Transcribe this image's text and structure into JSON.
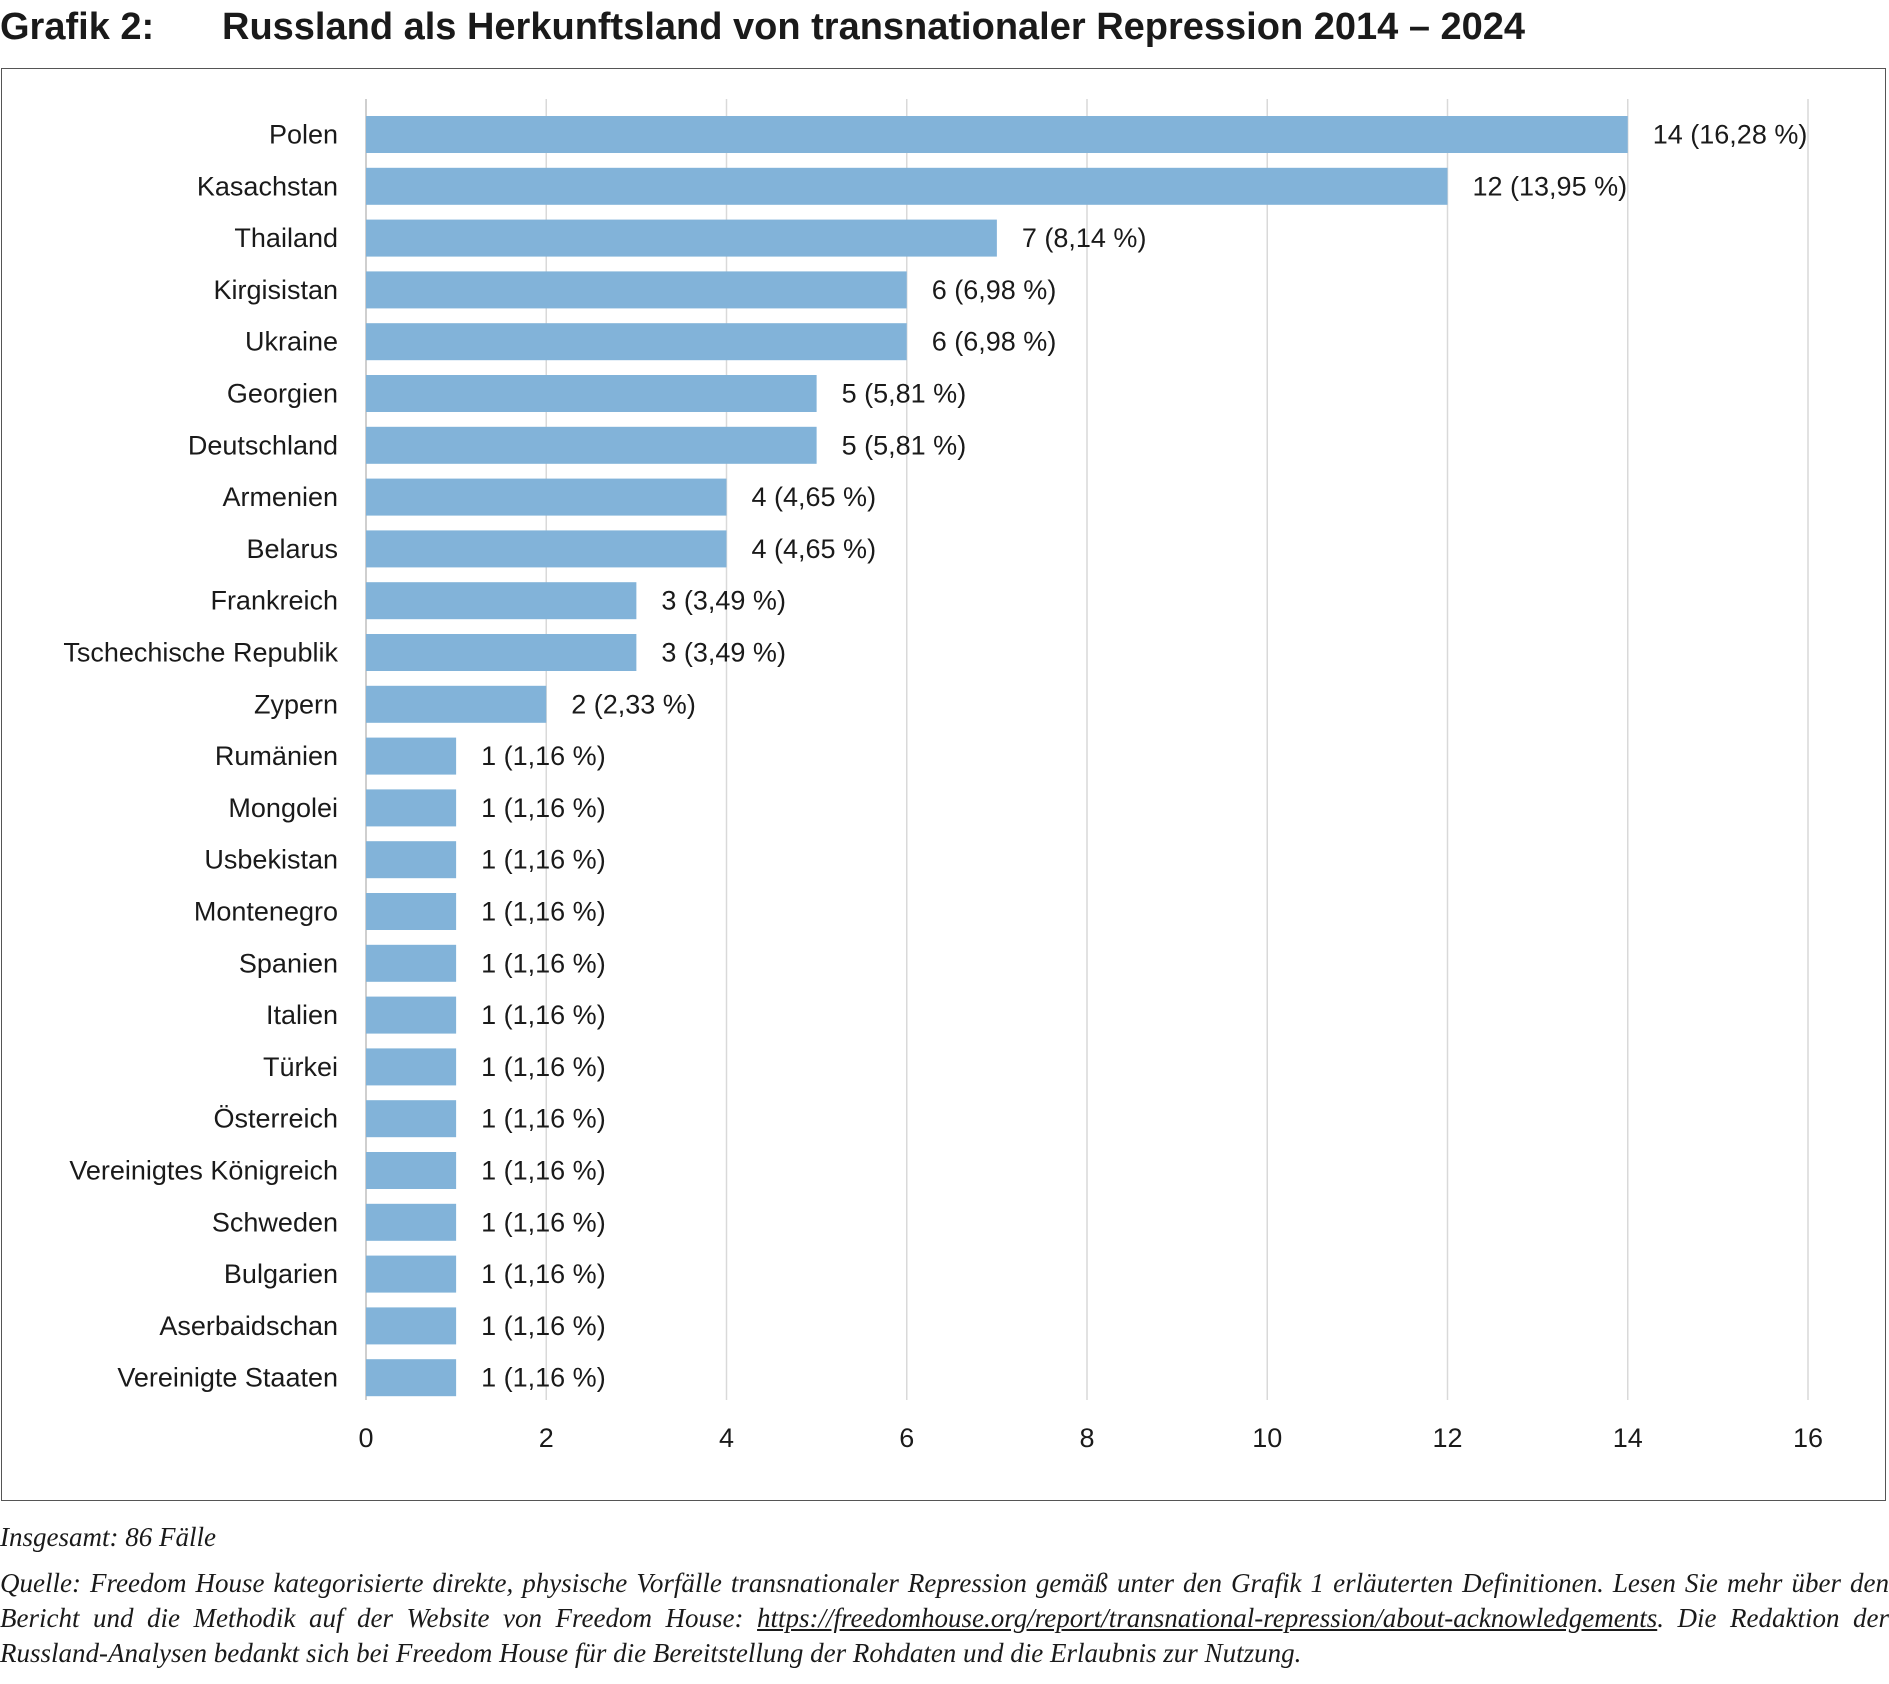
{
  "title": {
    "label": "Grafik 2:",
    "text": "Russland als Herkunftsland von transnationaler Repression 2014 – 2024"
  },
  "colors": {
    "bar": "#82B3D9",
    "grid": "#d9d9d9",
    "text": "#1a1a1a"
  },
  "chart_data": {
    "type": "bar",
    "orientation": "horizontal",
    "title": "Russland als Herkunftsland von transnationaler Repression 2014 – 2024",
    "xlabel": "",
    "ylabel": "",
    "xlim": [
      0,
      16
    ],
    "xticks": [
      0,
      2,
      4,
      6,
      8,
      10,
      12,
      14,
      16
    ],
    "grid": true,
    "categories": [
      "Polen",
      "Kasachstan",
      "Thailand",
      "Kirgisistan",
      "Ukraine",
      "Georgien",
      "Deutschland",
      "Armenien",
      "Belarus",
      "Frankreich",
      "Tschechische Republik",
      "Zypern",
      "Rumänien",
      "Mongolei",
      "Usbekistan",
      "Montenegro",
      "Spanien",
      "Italien",
      "Türkei",
      "Österreich",
      "Vereinigtes Königreich",
      "Schweden",
      "Bulgarien",
      "Aserbaidschan",
      "Vereinigte Staaten"
    ],
    "values": [
      14,
      12,
      7,
      6,
      6,
      5,
      5,
      4,
      4,
      3,
      3,
      2,
      1,
      1,
      1,
      1,
      1,
      1,
      1,
      1,
      1,
      1,
      1,
      1,
      1
    ],
    "data_labels": [
      "14 (16,28 %)",
      "12 (13,95 %)",
      "7 (8,14 %)",
      "6 (6,98 %)",
      "6 (6,98 %)",
      "5 (5,81 %)",
      "5 (5,81 %)",
      "4 (4,65 %)",
      "4 (4,65 %)",
      "3 (3,49 %)",
      "3 (3,49 %)",
      "2 (2,33 %)",
      "1 (1,16 %)",
      "1 (1,16 %)",
      "1 (1,16 %)",
      "1 (1,16 %)",
      "1 (1,16 %)",
      "1 (1,16 %)",
      "1 (1,16 %)",
      "1 (1,16 %)",
      "1 (1,16 %)",
      "1 (1,16 %)",
      "1 (1,16 %)",
      "1 (1,16 %)",
      "1 (1,16 %)"
    ]
  },
  "notes": {
    "total": "Insgesamt: 86 Fälle",
    "source_text": "Quelle: Freedom House kategorisierte direkte, physische Vorfälle transnationaler Repression gemäß unter den Grafik 1 erläuterten Definitionen. Lesen Sie mehr über den Bericht und die Methodik auf der Website von Freedom House: ",
    "source_link": "https://freedomhouse.org/report/transnational-repression/about-acknowledgements",
    "source_tail": ". Die Redaktion der Russland-Analysen bedankt sich bei Freedom House für die Bereitstellung der Rohdaten und die Erlaubnis zur Nutzung."
  }
}
